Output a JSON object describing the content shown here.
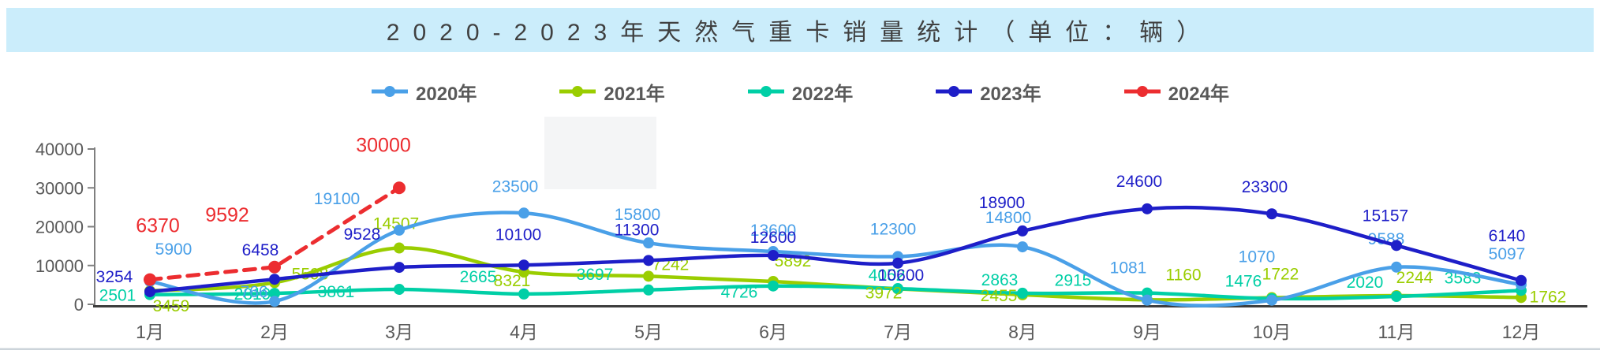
{
  "title": {
    "text": "2020-2023年天然气重卡销量统计（单位：辆）"
  },
  "theme": {
    "titlebar_bg": "#CBEDFB",
    "title_color": "#404040",
    "axis_text_color": "#595959",
    "axis_line_color": "#3D3D3D"
  },
  "legend": [
    {
      "label": "2020年",
      "color": "#4AA0E8"
    },
    {
      "label": "2021年",
      "color": "#9ACD00"
    },
    {
      "label": "2022年",
      "color": "#00CFA6"
    },
    {
      "label": "2023年",
      "color": "#1E1EC8"
    },
    {
      "label": "2024年",
      "color": "#EC2D30"
    }
  ],
  "chart_data": {
    "type": "line",
    "title": "2020-2023年天然气重卡销量统计（单位：辆）",
    "categories": [
      "1月",
      "2月",
      "3月",
      "4月",
      "5月",
      "6月",
      "7月",
      "8月",
      "9月",
      "10月",
      "11月",
      "12月"
    ],
    "series": [
      {
        "name": "2020年",
        "color": "#4AA0E8",
        "dashed": false,
        "values": [
          5900,
          766,
          19100,
          23500,
          15800,
          13600,
          12300,
          14800,
          1081,
          1070,
          9588,
          5097
        ]
      },
      {
        "name": "2021年",
        "color": "#9ACD00",
        "dashed": false,
        "values": [
          3459,
          5598,
          14507,
          8321,
          7242,
          5892,
          3972,
          2455,
          1160,
          1722,
          2244,
          1762
        ]
      },
      {
        "name": "2022年",
        "color": "#00CFA6",
        "dashed": false,
        "values": [
          2501,
          2819,
          3861,
          2665,
          3697,
          4726,
          4052,
          2863,
          2915,
          1476,
          2020,
          3583
        ]
      },
      {
        "name": "2023年",
        "color": "#1E1EC8",
        "dashed": false,
        "values": [
          3254,
          6458,
          9528,
          10100,
          11300,
          12600,
          10600,
          18900,
          24600,
          23300,
          15157,
          6140
        ]
      },
      {
        "name": "2024年",
        "color": "#EC2D30",
        "dashed": true,
        "values": [
          6370,
          9592,
          30000
        ]
      }
    ],
    "xlabel": "",
    "ylabel": "",
    "ylim": [
      0,
      40000
    ],
    "yticks": [
      0,
      10000,
      20000,
      30000,
      40000
    ],
    "grid": false,
    "legend_position": "top",
    "data_labels": true
  }
}
